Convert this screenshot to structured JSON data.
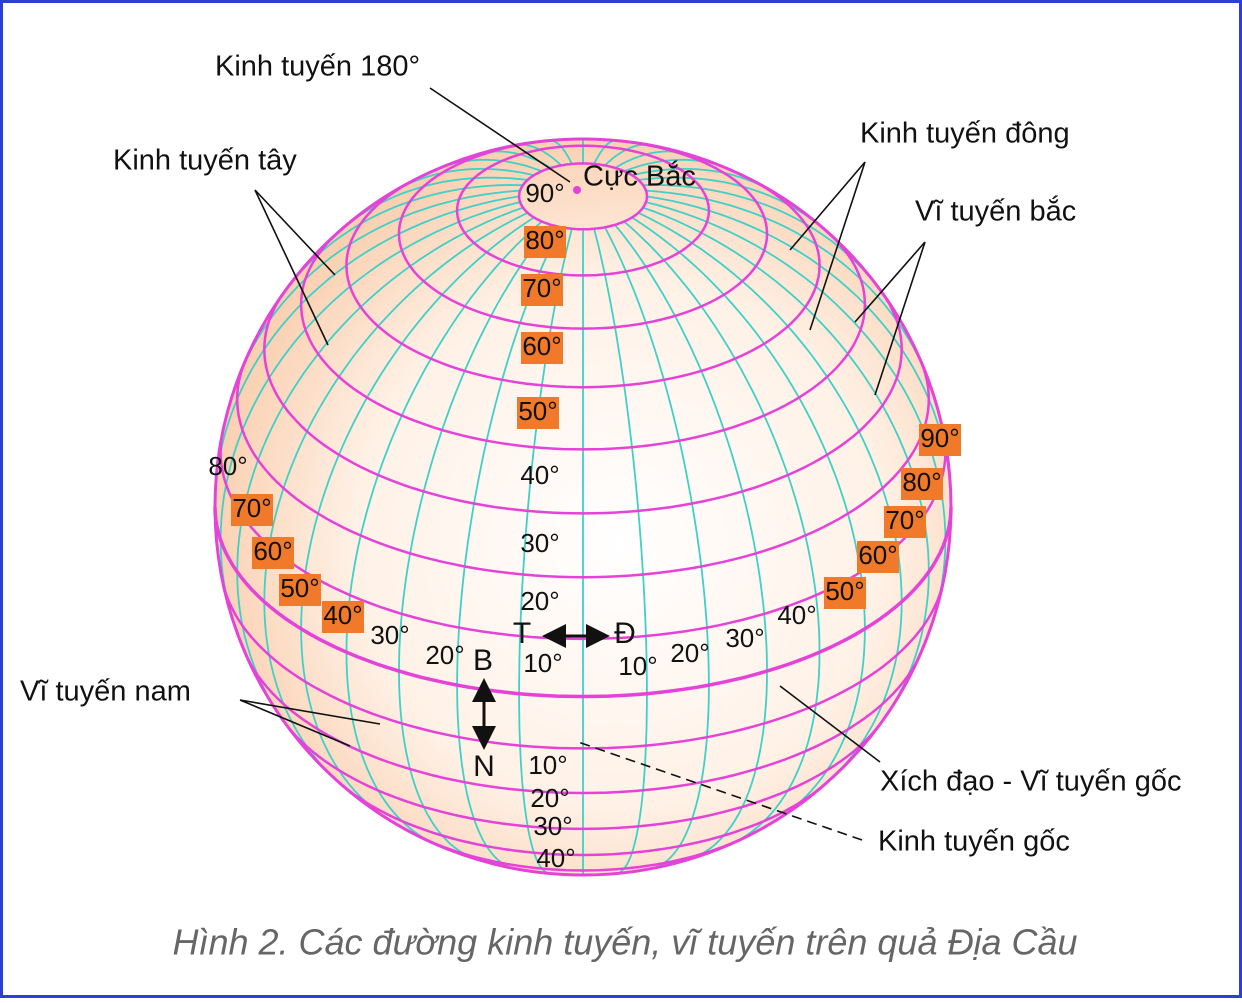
{
  "callouts": {
    "meridian_180": "Kinh tuyến 180°",
    "west_meridian": "Kinh tuyến tây",
    "east_meridian": "Kinh tuyến đông",
    "north_parallel": "Vĩ tuyến bắc",
    "north_pole": "Cực Bắc",
    "south_parallel": "Vĩ tuyến nam",
    "equator": "Xích đạo - Vĩ tuyến gốc",
    "prime_meridian": "Kinh tuyến gốc"
  },
  "directions": {
    "west": "T",
    "east": "Đ",
    "north": "B",
    "south": "N"
  },
  "latitudes_north": [
    "90°",
    "80°",
    "70°",
    "60°",
    "50°",
    "40°",
    "30°",
    "20°",
    "10°"
  ],
  "latitudes_south": [
    "10°",
    "20°",
    "30°",
    "40°"
  ],
  "longitudes_west": [
    "80°",
    "70°",
    "60°",
    "50°",
    "40°",
    "30°",
    "20°"
  ],
  "longitudes_east": [
    "10°",
    "20°",
    "30°",
    "40°",
    "50°",
    "60°",
    "70°",
    "80°",
    "90°"
  ],
  "caption": "Hình 2. Các đường kinh tuyến, vĩ tuyến trên quả Địa Cầu"
}
